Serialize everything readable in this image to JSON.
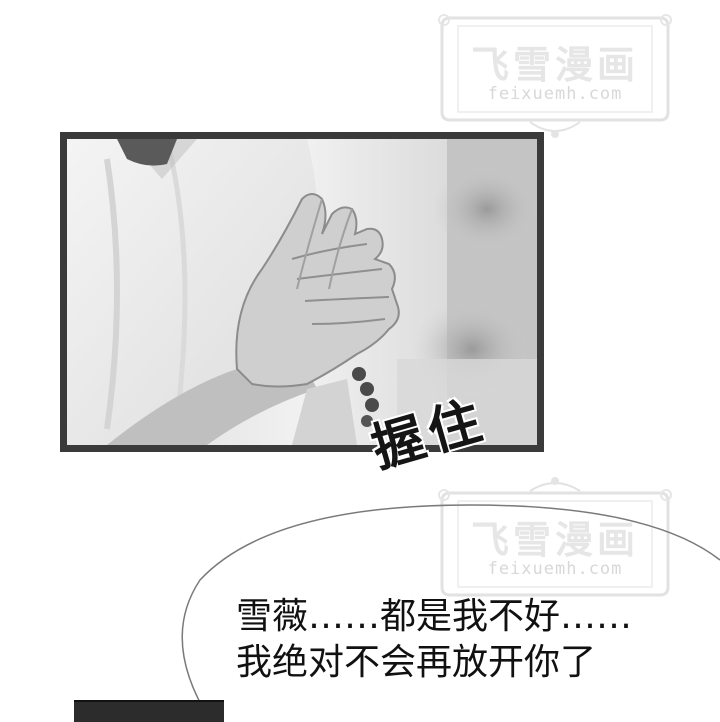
{
  "watermark": {
    "title": "飞雪漫画",
    "url": "feixuemh.com"
  },
  "panel": {
    "sound_effect": "握住"
  },
  "dialogue": {
    "line1": "雪薇……都是我不好……",
    "line2": "我绝对不会再放开你了"
  },
  "colors": {
    "frame": "#3a3a3a",
    "watermark": "#e0e0e0",
    "text": "#111111"
  }
}
